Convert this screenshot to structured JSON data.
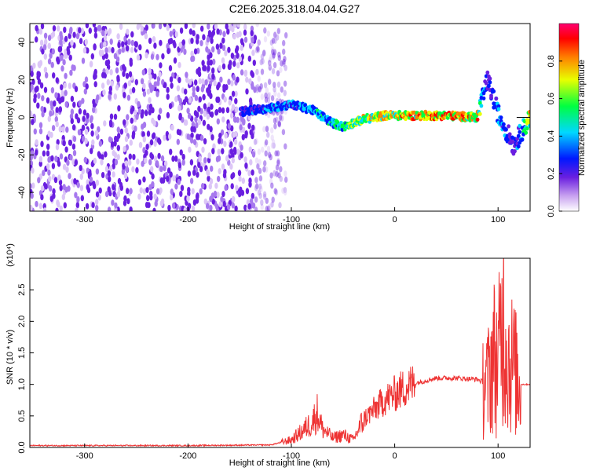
{
  "title": "C2E6.2025.318.04.04.G27",
  "chart_data": [
    {
      "type": "heatmap",
      "xlabel": "Height of straight line (km)",
      "ylabel": "Frequency (Hz)",
      "xlim": [
        -353,
        131
      ],
      "ylim": [
        -50,
        50
      ],
      "x_ticks": [
        -300,
        -200,
        -100,
        0,
        100
      ],
      "y_ticks": [
        -40,
        -20,
        0,
        20,
        40
      ],
      "colorbar": {
        "label": "Normalized spectral amplitude",
        "range": [
          0,
          1
        ],
        "ticks": [
          "0.0",
          "0.2",
          "0.4",
          "0.6",
          "0.8"
        ],
        "colors": [
          "#ffffff",
          "#c9a3f0",
          "#6a1fe0",
          "#0018ff",
          "#00d8ff",
          "#00ff40",
          "#e8ff00",
          "#ff8000",
          "#ff0000",
          "#ff0070"
        ]
      },
      "noise_region_x": [
        -353,
        -115
      ],
      "signal_track": [
        {
          "x": -150,
          "freq": 3,
          "amp": 0.35
        },
        {
          "x": -120,
          "freq": 5,
          "amp": 0.5
        },
        {
          "x": -100,
          "freq": 7,
          "amp": 0.45
        },
        {
          "x": -80,
          "freq": 4,
          "amp": 0.5
        },
        {
          "x": -60,
          "freq": -3,
          "amp": 0.55
        },
        {
          "x": -50,
          "freq": -5,
          "amp": 0.6
        },
        {
          "x": -30,
          "freq": -1,
          "amp": 0.75
        },
        {
          "x": -10,
          "freq": 1,
          "amp": 0.8
        },
        {
          "x": 20,
          "freq": 1,
          "amp": 0.9
        },
        {
          "x": 50,
          "freq": 1,
          "amp": 0.95
        },
        {
          "x": 80,
          "freq": 0,
          "amp": 0.85
        },
        {
          "x": 90,
          "freq": 20,
          "amp": 0.3
        },
        {
          "x": 100,
          "freq": 2,
          "amp": 0.5
        },
        {
          "x": 115,
          "freq": -15,
          "amp": 0.3
        },
        {
          "x": 131,
          "freq": 0,
          "amp": 0.8
        }
      ]
    },
    {
      "type": "line",
      "xlabel": "Height of straight line (km)",
      "ylabel": "SNR (10 * v/v)",
      "scale_label": "(x10⁴)",
      "xlim": [
        -353,
        131
      ],
      "ylim": [
        0,
        3.0
      ],
      "x_ticks": [
        -300,
        -200,
        -100,
        0,
        100
      ],
      "y_ticks": [
        "0.0",
        "0.5",
        "1.0",
        "1.5",
        "2.0",
        "2.5"
      ],
      "color": "#ee3333",
      "series": [
        {
          "points": [
            [
              -353,
              0.03
            ],
            [
              -300,
              0.03
            ],
            [
              -200,
              0.03
            ],
            [
              -120,
              0.04
            ],
            [
              -100,
              0.12
            ],
            [
              -90,
              0.25
            ],
            [
              -80,
              0.4
            ],
            [
              -75,
              0.55
            ],
            [
              -70,
              0.3
            ],
            [
              -60,
              0.15
            ],
            [
              -50,
              0.2
            ],
            [
              -40,
              0.12
            ],
            [
              -30,
              0.45
            ],
            [
              -20,
              0.6
            ],
            [
              -10,
              0.75
            ],
            [
              0,
              0.85
            ],
            [
              10,
              0.95
            ],
            [
              20,
              1.02
            ],
            [
              30,
              1.06
            ],
            [
              40,
              1.1
            ],
            [
              50,
              1.1
            ],
            [
              60,
              1.1
            ],
            [
              70,
              1.09
            ],
            [
              80,
              1.08
            ],
            [
              90,
              1.0
            ],
            [
              95,
              1.5
            ],
            [
              100,
              1.3
            ],
            [
              105,
              2.2
            ],
            [
              110,
              1.4
            ],
            [
              115,
              1.3
            ],
            [
              120,
              1.0
            ],
            [
              131,
              1.0
            ]
          ]
        }
      ]
    }
  ]
}
